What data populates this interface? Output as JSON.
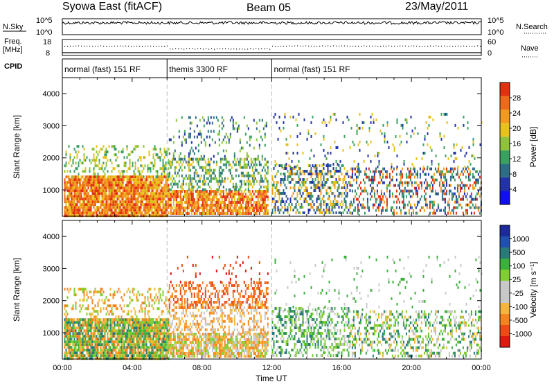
{
  "header": {
    "station": "Syowa East (fitACF)",
    "beam": "Beam 05",
    "date": "23/May/2011"
  },
  "strip_panels": {
    "nsky": {
      "label": "N.Sky",
      "ticks": [
        "10^5",
        "10^0"
      ]
    },
    "nsearch": {
      "label": "N.Search"
    },
    "freq": {
      "label_top": "Freq.",
      "label_bottom": "[MHz]",
      "ticks": [
        "18",
        "8"
      ]
    },
    "nave": {
      "label": "Nave",
      "ticks": [
        "60",
        "0"
      ]
    },
    "cpid": {
      "label": "CPID",
      "segments": [
        {
          "start_h": 0,
          "end_h": 6,
          "name": "normal (fast) 151 RF"
        },
        {
          "start_h": 6,
          "end_h": 12,
          "name": "themis 3300 RF"
        },
        {
          "start_h": 12,
          "end_h": 24,
          "name": "normal (fast) 151 RF"
        }
      ]
    }
  },
  "chart_data": [
    {
      "type": "heatmap",
      "panel": "power",
      "ylabel": "Slant Range [km]",
      "xlabel": "",
      "xlim": [
        0,
        24
      ],
      "ylim": [
        180,
        4500
      ],
      "yticks": [
        {
          "value": 1000,
          "label": "1000"
        },
        {
          "value": 2000,
          "label": "2000"
        },
        {
          "value": 3000,
          "label": "3000"
        },
        {
          "value": 4000,
          "label": "4000"
        }
      ],
      "colorbar": {
        "label": "Power [dB]",
        "ticks": [
          "4",
          "8",
          "12",
          "16",
          "20",
          "24",
          "28"
        ],
        "colors": [
          "#1010ee",
          "#2233aa",
          "#2e6e84",
          "#3aa060",
          "#8fc43a",
          "#e6c21a",
          "#f29a1d",
          "#ef6a17",
          "#e33010"
        ]
      },
      "regions": [
        {
          "h0": 0.1,
          "h1": 6.1,
          "r0": 180,
          "r1": 1450,
          "colors": [
            "#e33010",
            "#ef6a17",
            "#f29a1d",
            "#e6c21a"
          ],
          "density": 0.9
        },
        {
          "h0": 0.1,
          "h1": 6.1,
          "r0": 1400,
          "r1": 2400,
          "colors": [
            "#8fc43a",
            "#3aa060",
            "#e6c21a"
          ],
          "density": 0.25
        },
        {
          "h0": 6.1,
          "h1": 11.8,
          "r0": 250,
          "r1": 1000,
          "colors": [
            "#ef6a17",
            "#f29a1d",
            "#e33010",
            "#e6c21a"
          ],
          "density": 0.8
        },
        {
          "h0": 6.1,
          "h1": 11.8,
          "r0": 1000,
          "r1": 2000,
          "colors": [
            "#8fc43a",
            "#3aa060",
            "#e6c21a",
            "#2e6e84"
          ],
          "density": 0.4
        },
        {
          "h0": 6.1,
          "h1": 11.8,
          "r0": 2000,
          "r1": 3300,
          "colors": [
            "#2233aa",
            "#2e6e84",
            "#3aa060",
            "#8fc43a"
          ],
          "density": 0.15
        },
        {
          "h0": 12.0,
          "h1": 16.5,
          "r0": 250,
          "r1": 1800,
          "colors": [
            "#2233aa",
            "#2e6e84",
            "#3aa060",
            "#e6c21a",
            "#f29a1d"
          ],
          "density": 0.45
        },
        {
          "h0": 16.5,
          "h1": 24.0,
          "r0": 250,
          "r1": 1700,
          "colors": [
            "#2233aa",
            "#2e6e84",
            "#3aa060",
            "#f29a1d",
            "#e33010"
          ],
          "density": 0.35
        },
        {
          "h0": 12.0,
          "h1": 24.0,
          "r0": 1700,
          "r1": 3400,
          "colors": [
            "#2233aa",
            "#3aa060",
            "#e6c21a"
          ],
          "density": 0.07
        }
      ]
    },
    {
      "type": "heatmap",
      "panel": "velocity",
      "ylabel": "Slant Range [km]",
      "xlabel": "Time UT",
      "xlim": [
        0,
        24
      ],
      "ylim": [
        180,
        4500
      ],
      "xticks": [
        {
          "value": 0,
          "label": "00:00"
        },
        {
          "value": 4,
          "label": "04:00"
        },
        {
          "value": 8,
          "label": "08:00"
        },
        {
          "value": 12,
          "label": "12:00"
        },
        {
          "value": 16,
          "label": "16:00"
        },
        {
          "value": 20,
          "label": "20:00"
        },
        {
          "value": 24,
          "label": "00:00"
        }
      ],
      "yticks": [
        {
          "value": 1000,
          "label": "1000"
        },
        {
          "value": 2000,
          "label": "2000"
        },
        {
          "value": 3000,
          "label": "3000"
        },
        {
          "value": 4000,
          "label": "4000"
        }
      ],
      "colorbar": {
        "label": "Velocity [m s⁻¹]",
        "ticks": [
          "-1000",
          "-500",
          "-100",
          "-25",
          "25",
          "100",
          "500",
          "1000"
        ],
        "colors": [
          "#e01810",
          "#ef4a16",
          "#f5841e",
          "#f3b63a",
          "#c8c8c8",
          "#c8c8c8",
          "#80cf30",
          "#3cb03c",
          "#2a7a7a",
          "#2050b0",
          "#1c2a9c"
        ]
      },
      "regions": [
        {
          "h0": 0.1,
          "h1": 6.1,
          "r0": 180,
          "r1": 1450,
          "colors": [
            "#f5841e",
            "#f3b63a",
            "#3cb03c",
            "#2a7a7a",
            "#80cf30"
          ],
          "density": 0.9
        },
        {
          "h0": 0.1,
          "h1": 6.1,
          "r0": 1400,
          "r1": 2400,
          "colors": [
            "#f5841e",
            "#f3b63a",
            "#80cf30"
          ],
          "density": 0.25
        },
        {
          "h0": 6.1,
          "h1": 11.8,
          "r0": 250,
          "r1": 1000,
          "colors": [
            "#c8c8c8",
            "#f3b63a",
            "#80cf30",
            "#f5841e"
          ],
          "density": 0.8
        },
        {
          "h0": 6.1,
          "h1": 11.8,
          "r0": 1000,
          "r1": 2000,
          "colors": [
            "#c8c8c8",
            "#f3b63a",
            "#f5841e"
          ],
          "density": 0.4
        },
        {
          "h0": 6.1,
          "h1": 11.8,
          "r0": 1800,
          "r1": 2600,
          "colors": [
            "#ef4a16",
            "#f5841e"
          ],
          "density": 0.35
        },
        {
          "h0": 6.1,
          "h1": 11.8,
          "r0": 2600,
          "r1": 3400,
          "colors": [
            "#e01810",
            "#ef4a16"
          ],
          "density": 0.05
        },
        {
          "h0": 12.0,
          "h1": 16.5,
          "r0": 250,
          "r1": 1800,
          "colors": [
            "#3cb03c",
            "#80cf30",
            "#2a7a7a",
            "#c8c8c8"
          ],
          "density": 0.45
        },
        {
          "h0": 16.5,
          "h1": 24.0,
          "r0": 250,
          "r1": 1700,
          "colors": [
            "#3cb03c",
            "#80cf30",
            "#c8c8c8",
            "#f3b63a",
            "#2a7a7a"
          ],
          "density": 0.35
        },
        {
          "h0": 12.0,
          "h1": 24.0,
          "r0": 1700,
          "r1": 3400,
          "colors": [
            "#3cb03c",
            "#c8c8c8"
          ],
          "density": 0.05
        }
      ]
    }
  ]
}
